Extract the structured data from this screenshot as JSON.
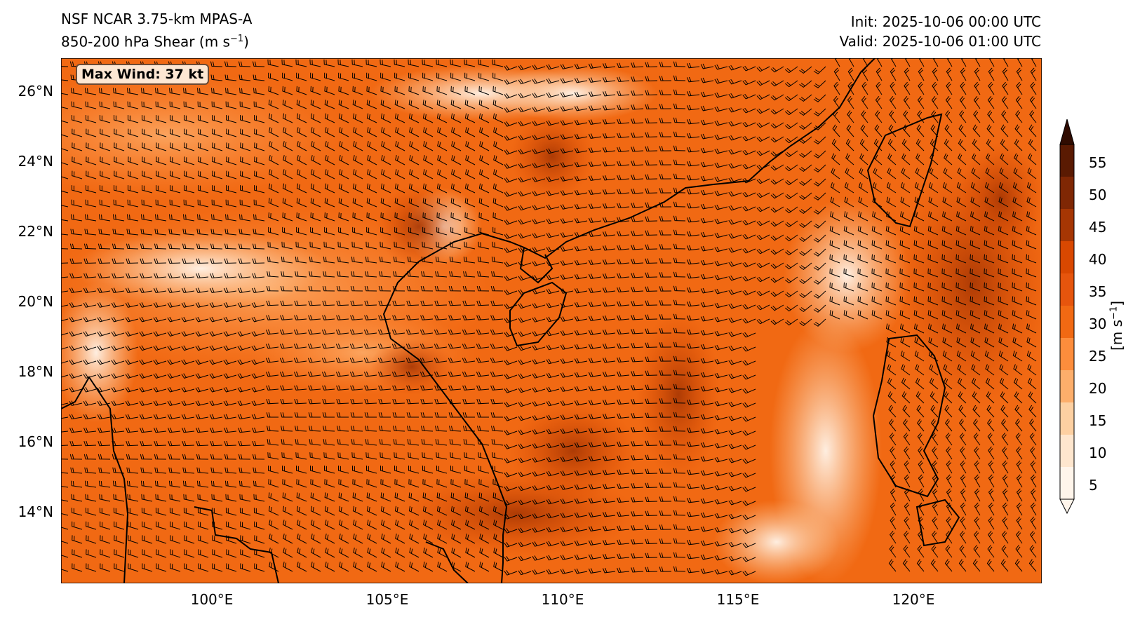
{
  "header": {
    "model": "NSF NCAR 3.75-km MPAS-A",
    "field": "850-200 hPa Shear (m s",
    "field_sup": "−1",
    "field_end": ")",
    "init": "Init: 2025-10-06 00:00 UTC",
    "valid": "Valid: 2025-10-06 01:00 UTC"
  },
  "map": {
    "max_wind_label": "Max Wind: 37 kt",
    "lat_labels": [
      "26°N",
      "24°N",
      "22°N",
      "20°N",
      "18°N",
      "16°N",
      "14°N"
    ],
    "lon_labels": [
      "100°E",
      "105°E",
      "110°E",
      "115°E",
      "120°E"
    ],
    "extent": {
      "lon_min": 96.2,
      "lon_max": 124.1,
      "lat_min": 12.0,
      "lat_max": 27.0
    },
    "coastline_color": "#000000",
    "field_palette": [
      "#fff5eb",
      "#fee6ce",
      "#fdd0a2",
      "#fdae6b",
      "#fd8d3c",
      "#f16913",
      "#d94801",
      "#a63603",
      "#7f2704",
      "#4a1503",
      "#1a0800"
    ]
  },
  "colorbar": {
    "ticks": [
      "5",
      "10",
      "15",
      "20",
      "25",
      "30",
      "35",
      "40",
      "45",
      "50",
      "55"
    ],
    "unit_label": "[m s",
    "unit_sup": "−1",
    "unit_end": "]",
    "colors": [
      "#fff5eb",
      "#fee6ce",
      "#fdd0a2",
      "#fdae6b",
      "#fd8d3c",
      "#f16913",
      "#e6550d",
      "#d94801",
      "#a63603",
      "#7f2704",
      "#5a1a02",
      "#300c01"
    ]
  }
}
